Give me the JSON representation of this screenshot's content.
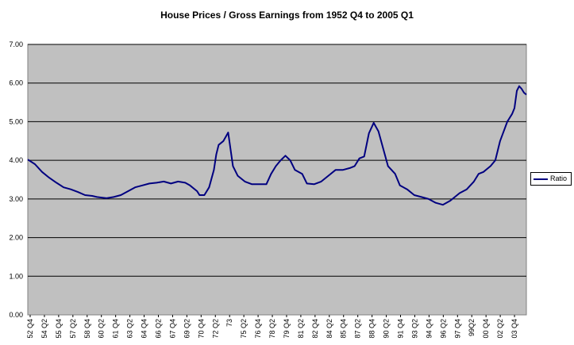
{
  "chart_data": {
    "type": "line",
    "title": "House Prices / Gross Earnings from 1952 Q4 to 2005 Q1",
    "xlabel": "",
    "ylabel": "",
    "ylim": [
      0,
      7
    ],
    "yticks": [
      "0.00",
      "1.00",
      "2.00",
      "3.00",
      "4.00",
      "5.00",
      "6.00",
      "7.00"
    ],
    "grid": true,
    "legend_position": "right",
    "x_tick_labels": [
      "52 Q4",
      "54 Q2",
      "55 Q4",
      "57 Q2",
      "58 Q4",
      "60 Q2",
      "61 Q4",
      "63 Q2",
      "64 Q4",
      "66 Q2",
      "67 Q4",
      "69 Q2",
      "70 Q4",
      "72 Q2",
      "73",
      "75 Q2",
      "76 Q4",
      "78 Q2",
      "79 Q4",
      "81 Q2",
      "82 Q4",
      "84 Q2",
      "85 Q4",
      "87 Q2",
      "88 Q4",
      "90 Q2",
      "91 Q4",
      "93 Q2",
      "94 Q4",
      "96 Q2",
      "97 Q4",
      "99Q2",
      "00 Q4",
      "02 Q2",
      "03 Q4"
    ],
    "series": [
      {
        "name": "Ratio",
        "color": "#000080",
        "x": [
          1952.75,
          1953.5,
          1954.25,
          1955.0,
          1955.75,
          1956.5,
          1957.25,
          1958.0,
          1958.75,
          1959.5,
          1960.0,
          1961.0,
          1961.75,
          1962.5,
          1963.25,
          1964.0,
          1964.75,
          1965.5,
          1966.25,
          1967.0,
          1967.75,
          1968.5,
          1969.25,
          1969.75,
          1970.5,
          1970.75,
          1971.25,
          1971.75,
          1972.25,
          1972.5,
          1972.75,
          1973.25,
          1973.75,
          1974.25,
          1974.75,
          1975.5,
          1976.25,
          1977.0,
          1977.75,
          1978.25,
          1978.75,
          1979.25,
          1979.75,
          1980.25,
          1980.75,
          1981.5,
          1982.0,
          1982.75,
          1983.5,
          1984.25,
          1985.0,
          1985.75,
          1986.5,
          1987.0,
          1987.5,
          1988.0,
          1988.5,
          1989.0,
          1989.5,
          1990.0,
          1990.5,
          1991.25,
          1991.75,
          1992.5,
          1993.25,
          1994.0,
          1994.75,
          1995.5,
          1996.25,
          1997.0,
          1997.5,
          1998.0,
          1998.75,
          1999.5,
          2000.0,
          2000.5,
          2001.25,
          2001.75,
          2002.25,
          2003.0,
          2003.5,
          2003.75,
          2004.0,
          2004.25,
          2004.5,
          2004.75,
          2005.0
        ],
        "values": [
          4.02,
          3.9,
          3.7,
          3.55,
          3.42,
          3.3,
          3.25,
          3.18,
          3.1,
          3.08,
          3.05,
          3.02,
          3.05,
          3.1,
          3.2,
          3.3,
          3.35,
          3.4,
          3.42,
          3.45,
          3.4,
          3.45,
          3.42,
          3.35,
          3.2,
          3.1,
          3.1,
          3.3,
          3.75,
          4.15,
          4.4,
          4.5,
          4.72,
          3.85,
          3.6,
          3.45,
          3.38,
          3.38,
          3.38,
          3.65,
          3.85,
          4.0,
          4.12,
          4.0,
          3.75,
          3.65,
          3.4,
          3.38,
          3.45,
          3.6,
          3.75,
          3.75,
          3.8,
          3.85,
          4.05,
          4.1,
          4.7,
          4.97,
          4.75,
          4.3,
          3.85,
          3.65,
          3.35,
          3.25,
          3.1,
          3.05,
          3.0,
          2.9,
          2.85,
          2.95,
          3.05,
          3.15,
          3.25,
          3.45,
          3.65,
          3.7,
          3.85,
          4.0,
          4.5,
          5.0,
          5.2,
          5.35,
          5.8,
          5.92,
          5.85,
          5.75,
          5.7
        ]
      }
    ]
  }
}
